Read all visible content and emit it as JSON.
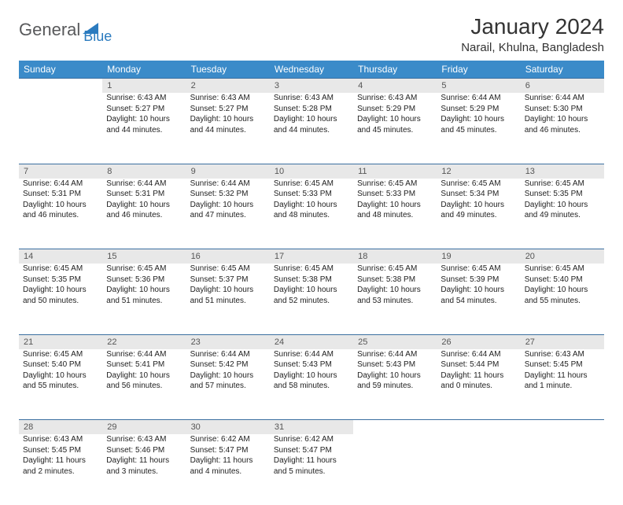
{
  "brand": {
    "part1": "General",
    "part2": "Blue",
    "part1_color": "#58595b",
    "part2_color": "#2b7bbf"
  },
  "title": "January 2024",
  "location": "Narail, Khulna, Bangladesh",
  "colors": {
    "header_bg": "#3b8bc9",
    "header_text": "#ffffff",
    "daynum_bg": "#e8e8e8",
    "daynum_text": "#555555",
    "row_border": "#3b6fa0",
    "body_text": "#222222",
    "background": "#ffffff"
  },
  "fonts": {
    "title_size": 28,
    "location_size": 15,
    "header_size": 12,
    "daynum_size": 11,
    "cell_size": 10
  },
  "day_headers": [
    "Sunday",
    "Monday",
    "Tuesday",
    "Wednesday",
    "Thursday",
    "Friday",
    "Saturday"
  ],
  "weeks": [
    [
      null,
      {
        "n": "1",
        "sr": "Sunrise: 6:43 AM",
        "ss": "Sunset: 5:27 PM",
        "d1": "Daylight: 10 hours",
        "d2": "and 44 minutes."
      },
      {
        "n": "2",
        "sr": "Sunrise: 6:43 AM",
        "ss": "Sunset: 5:27 PM",
        "d1": "Daylight: 10 hours",
        "d2": "and 44 minutes."
      },
      {
        "n": "3",
        "sr": "Sunrise: 6:43 AM",
        "ss": "Sunset: 5:28 PM",
        "d1": "Daylight: 10 hours",
        "d2": "and 44 minutes."
      },
      {
        "n": "4",
        "sr": "Sunrise: 6:43 AM",
        "ss": "Sunset: 5:29 PM",
        "d1": "Daylight: 10 hours",
        "d2": "and 45 minutes."
      },
      {
        "n": "5",
        "sr": "Sunrise: 6:44 AM",
        "ss": "Sunset: 5:29 PM",
        "d1": "Daylight: 10 hours",
        "d2": "and 45 minutes."
      },
      {
        "n": "6",
        "sr": "Sunrise: 6:44 AM",
        "ss": "Sunset: 5:30 PM",
        "d1": "Daylight: 10 hours",
        "d2": "and 46 minutes."
      }
    ],
    [
      {
        "n": "7",
        "sr": "Sunrise: 6:44 AM",
        "ss": "Sunset: 5:31 PM",
        "d1": "Daylight: 10 hours",
        "d2": "and 46 minutes."
      },
      {
        "n": "8",
        "sr": "Sunrise: 6:44 AM",
        "ss": "Sunset: 5:31 PM",
        "d1": "Daylight: 10 hours",
        "d2": "and 46 minutes."
      },
      {
        "n": "9",
        "sr": "Sunrise: 6:44 AM",
        "ss": "Sunset: 5:32 PM",
        "d1": "Daylight: 10 hours",
        "d2": "and 47 minutes."
      },
      {
        "n": "10",
        "sr": "Sunrise: 6:45 AM",
        "ss": "Sunset: 5:33 PM",
        "d1": "Daylight: 10 hours",
        "d2": "and 48 minutes."
      },
      {
        "n": "11",
        "sr": "Sunrise: 6:45 AM",
        "ss": "Sunset: 5:33 PM",
        "d1": "Daylight: 10 hours",
        "d2": "and 48 minutes."
      },
      {
        "n": "12",
        "sr": "Sunrise: 6:45 AM",
        "ss": "Sunset: 5:34 PM",
        "d1": "Daylight: 10 hours",
        "d2": "and 49 minutes."
      },
      {
        "n": "13",
        "sr": "Sunrise: 6:45 AM",
        "ss": "Sunset: 5:35 PM",
        "d1": "Daylight: 10 hours",
        "d2": "and 49 minutes."
      }
    ],
    [
      {
        "n": "14",
        "sr": "Sunrise: 6:45 AM",
        "ss": "Sunset: 5:35 PM",
        "d1": "Daylight: 10 hours",
        "d2": "and 50 minutes."
      },
      {
        "n": "15",
        "sr": "Sunrise: 6:45 AM",
        "ss": "Sunset: 5:36 PM",
        "d1": "Daylight: 10 hours",
        "d2": "and 51 minutes."
      },
      {
        "n": "16",
        "sr": "Sunrise: 6:45 AM",
        "ss": "Sunset: 5:37 PM",
        "d1": "Daylight: 10 hours",
        "d2": "and 51 minutes."
      },
      {
        "n": "17",
        "sr": "Sunrise: 6:45 AM",
        "ss": "Sunset: 5:38 PM",
        "d1": "Daylight: 10 hours",
        "d2": "and 52 minutes."
      },
      {
        "n": "18",
        "sr": "Sunrise: 6:45 AM",
        "ss": "Sunset: 5:38 PM",
        "d1": "Daylight: 10 hours",
        "d2": "and 53 minutes."
      },
      {
        "n": "19",
        "sr": "Sunrise: 6:45 AM",
        "ss": "Sunset: 5:39 PM",
        "d1": "Daylight: 10 hours",
        "d2": "and 54 minutes."
      },
      {
        "n": "20",
        "sr": "Sunrise: 6:45 AM",
        "ss": "Sunset: 5:40 PM",
        "d1": "Daylight: 10 hours",
        "d2": "and 55 minutes."
      }
    ],
    [
      {
        "n": "21",
        "sr": "Sunrise: 6:45 AM",
        "ss": "Sunset: 5:40 PM",
        "d1": "Daylight: 10 hours",
        "d2": "and 55 minutes."
      },
      {
        "n": "22",
        "sr": "Sunrise: 6:44 AM",
        "ss": "Sunset: 5:41 PM",
        "d1": "Daylight: 10 hours",
        "d2": "and 56 minutes."
      },
      {
        "n": "23",
        "sr": "Sunrise: 6:44 AM",
        "ss": "Sunset: 5:42 PM",
        "d1": "Daylight: 10 hours",
        "d2": "and 57 minutes."
      },
      {
        "n": "24",
        "sr": "Sunrise: 6:44 AM",
        "ss": "Sunset: 5:43 PM",
        "d1": "Daylight: 10 hours",
        "d2": "and 58 minutes."
      },
      {
        "n": "25",
        "sr": "Sunrise: 6:44 AM",
        "ss": "Sunset: 5:43 PM",
        "d1": "Daylight: 10 hours",
        "d2": "and 59 minutes."
      },
      {
        "n": "26",
        "sr": "Sunrise: 6:44 AM",
        "ss": "Sunset: 5:44 PM",
        "d1": "Daylight: 11 hours",
        "d2": "and 0 minutes."
      },
      {
        "n": "27",
        "sr": "Sunrise: 6:43 AM",
        "ss": "Sunset: 5:45 PM",
        "d1": "Daylight: 11 hours",
        "d2": "and 1 minute."
      }
    ],
    [
      {
        "n": "28",
        "sr": "Sunrise: 6:43 AM",
        "ss": "Sunset: 5:45 PM",
        "d1": "Daylight: 11 hours",
        "d2": "and 2 minutes."
      },
      {
        "n": "29",
        "sr": "Sunrise: 6:43 AM",
        "ss": "Sunset: 5:46 PM",
        "d1": "Daylight: 11 hours",
        "d2": "and 3 minutes."
      },
      {
        "n": "30",
        "sr": "Sunrise: 6:42 AM",
        "ss": "Sunset: 5:47 PM",
        "d1": "Daylight: 11 hours",
        "d2": "and 4 minutes."
      },
      {
        "n": "31",
        "sr": "Sunrise: 6:42 AM",
        "ss": "Sunset: 5:47 PM",
        "d1": "Daylight: 11 hours",
        "d2": "and 5 minutes."
      },
      null,
      null,
      null
    ]
  ]
}
